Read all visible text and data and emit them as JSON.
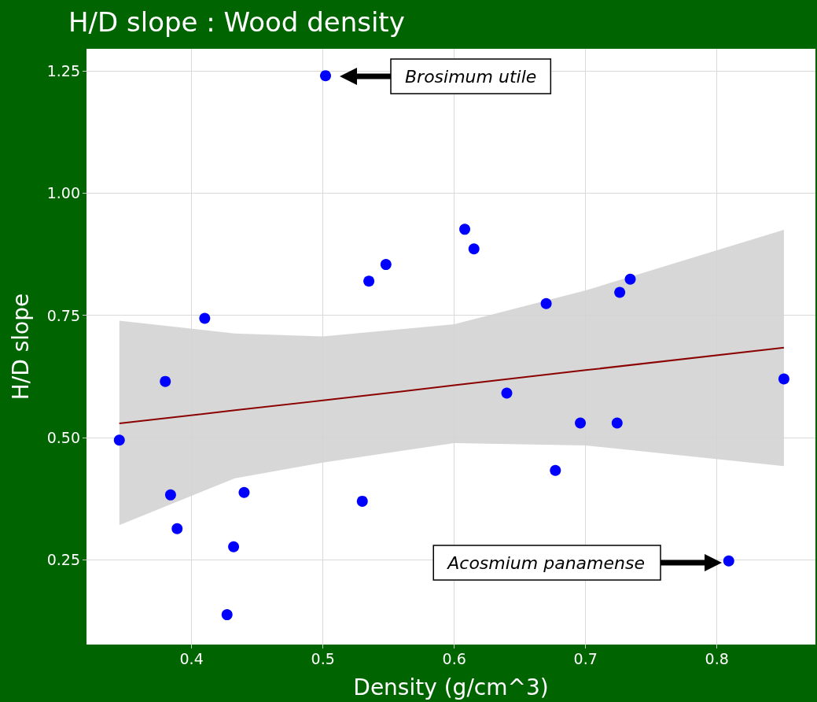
{
  "chart_data": {
    "type": "scatter",
    "title": "H/D slope : Wood density",
    "xlabel": "Density (g/cm^3)",
    "ylabel": "H/D slope",
    "xlim": [
      0.32,
      0.875
    ],
    "xticks": [
      0.4,
      0.5,
      0.6,
      0.7,
      0.8
    ],
    "ylim": [
      0.077,
      1.295
    ],
    "yticks": [
      {
        "value": 0.25,
        "label": "0.25"
      },
      {
        "value": 0.5,
        "label": "0.50"
      },
      {
        "value": 0.75,
        "label": "0.75"
      },
      {
        "value": 1.0,
        "label": "1.00"
      },
      {
        "value": 1.25,
        "label": "1.25"
      }
    ],
    "grid": true,
    "marker": "circle",
    "series": [
      {
        "type": "line",
        "color": "#8b0000",
        "line_style": "solid",
        "marker": "none",
        "x": [
          0.345,
          0.433,
          0.5,
          0.6,
          0.7,
          0.851
        ],
        "values": [
          0.529,
          0.556,
          0.576,
          0.607,
          0.638,
          0.684
        ],
        "lower": [
          0.321,
          0.417,
          0.449,
          0.489,
          0.484,
          0.442
        ],
        "upper": [
          0.739,
          0.713,
          0.707,
          0.732,
          0.801,
          0.925
        ]
      },
      {
        "color": "#0000ff",
        "x": [
          0.502,
          0.345,
          0.38,
          0.41,
          0.384,
          0.389,
          0.44,
          0.432,
          0.427,
          0.535,
          0.548,
          0.53,
          0.608,
          0.615,
          0.64,
          0.67,
          0.677,
          0.726,
          0.734,
          0.696,
          0.724,
          0.809,
          0.851
        ],
        "values": [
          1.24,
          0.495,
          0.615,
          0.744,
          0.383,
          0.314,
          0.388,
          0.277,
          0.138,
          0.82,
          0.854,
          0.37,
          0.926,
          0.886,
          0.591,
          0.774,
          0.433,
          0.797,
          0.824,
          0.53,
          0.53,
          0.248,
          0.62
        ]
      }
    ],
    "annotations": [
      "Brosimum utile",
      "Acosmium panamense"
    ]
  }
}
